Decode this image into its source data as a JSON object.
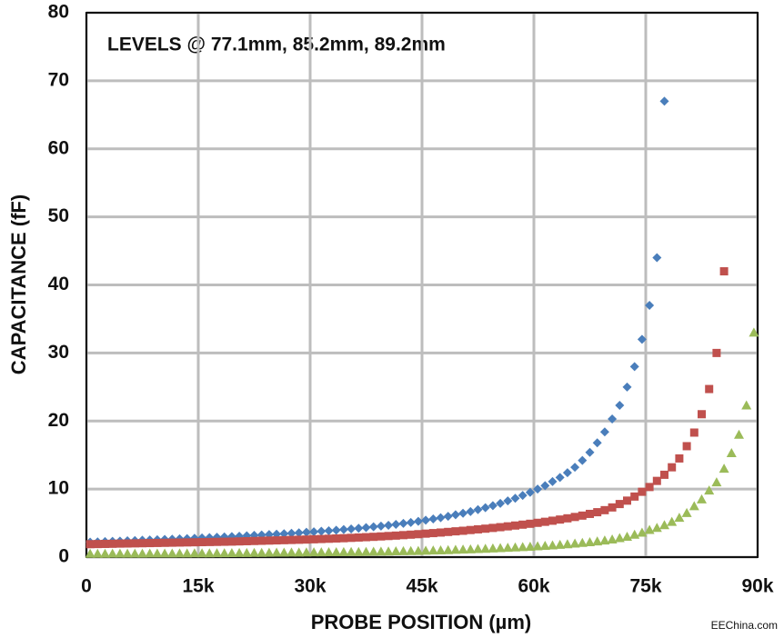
{
  "chart_data": {
    "type": "scatter",
    "annotation": "LEVELS @ 77.1mm, 85.2mm, 89.2mm",
    "x_label": "PROBE POSITION (µm)",
    "y_label": "CAPACITANCE (fF)",
    "watermark": "EEChina.com",
    "xlim": [
      0,
      90000
    ],
    "xticks": [
      0,
      {
        "value": 15000,
        "label": "15k"
      },
      {
        "value": 30000,
        "label": "30k"
      },
      {
        "value": 45000,
        "label": "45k"
      },
      {
        "value": 60000,
        "label": "60k"
      },
      {
        "value": 75000,
        "label": "75k"
      },
      {
        "value": 90000,
        "label": "90k"
      }
    ],
    "ylim": [
      0,
      80
    ],
    "yticks": [
      0,
      10,
      20,
      30,
      40,
      50,
      60,
      70,
      80
    ],
    "grid": true,
    "x": [
      500,
      1500,
      2500,
      3500,
      4500,
      5500,
      6500,
      7500,
      8500,
      9500,
      10500,
      11500,
      12500,
      13500,
      14500,
      15500,
      16500,
      17500,
      18500,
      19500,
      20500,
      21500,
      22500,
      23500,
      24500,
      25500,
      26500,
      27500,
      28500,
      29500,
      30500,
      31500,
      32500,
      33500,
      34500,
      35500,
      36500,
      37500,
      38500,
      39500,
      40500,
      41500,
      42500,
      43500,
      44500,
      45500,
      46500,
      47500,
      48500,
      49500,
      50500,
      51500,
      52500,
      53500,
      54500,
      55500,
      56500,
      57500,
      58500,
      59500,
      60500,
      61500,
      62500,
      63500,
      64500,
      65500,
      66500,
      67500,
      68500,
      69500,
      70500,
      71500,
      72500,
      73500,
      74500,
      75500,
      76500,
      77500,
      78500,
      79500,
      80500,
      81500,
      82500,
      83500,
      84500,
      85500,
      86500,
      87500,
      88500,
      89500
    ],
    "series": [
      {
        "color": "#4a7ebb",
        "marker": "diamond",
        "values": [
          2.2,
          2.24,
          2.28,
          2.32,
          2.36,
          2.4,
          2.44,
          2.48,
          2.52,
          2.56,
          2.6,
          2.64,
          2.68,
          2.72,
          2.77,
          2.82,
          2.87,
          2.92,
          2.97,
          3.02,
          3.08,
          3.14,
          3.2,
          3.26,
          3.32,
          3.38,
          3.44,
          3.51,
          3.58,
          3.65,
          3.72,
          3.8,
          3.88,
          3.96,
          4.05,
          4.14,
          4.24,
          4.34,
          4.45,
          4.56,
          4.68,
          4.81,
          4.95,
          5.1,
          5.26,
          5.43,
          5.61,
          5.8,
          6.0,
          6.22,
          6.45,
          6.7,
          6.97,
          7.26,
          7.57,
          7.9,
          8.26,
          8.65,
          9.07,
          9.52,
          10.0,
          10.5,
          11.1,
          11.7,
          12.4,
          13.2,
          14.2,
          15.4,
          16.8,
          18.4,
          20.3,
          22.3,
          25,
          28,
          32,
          37,
          44,
          67,
          null,
          null,
          null,
          null,
          null,
          null,
          null,
          null,
          null,
          null,
          null,
          null
        ]
      },
      {
        "color": "#c0504d",
        "marker": "square",
        "values": [
          1.9,
          1.92,
          1.94,
          1.96,
          1.98,
          2.0,
          2.02,
          2.04,
          2.06,
          2.08,
          2.1,
          2.12,
          2.14,
          2.16,
          2.18,
          2.2,
          2.22,
          2.24,
          2.26,
          2.28,
          2.31,
          2.34,
          2.37,
          2.4,
          2.43,
          2.46,
          2.49,
          2.52,
          2.55,
          2.58,
          2.62,
          2.66,
          2.7,
          2.74,
          2.78,
          2.83,
          2.88,
          2.93,
          2.98,
          3.04,
          3.1,
          3.16,
          3.23,
          3.3,
          3.37,
          3.45,
          3.53,
          3.61,
          3.7,
          3.79,
          3.88,
          3.98,
          4.08,
          4.18,
          4.29,
          4.4,
          4.52,
          4.64,
          4.77,
          4.9,
          5.04,
          5.19,
          5.35,
          5.52,
          5.7,
          5.9,
          6.1,
          6.35,
          6.6,
          6.9,
          7.3,
          7.8,
          8.3,
          8.9,
          9.6,
          10.3,
          11.2,
          12.1,
          13.2,
          14.5,
          16.3,
          18.3,
          21,
          24.7,
          30,
          42,
          null,
          null,
          null,
          null
        ]
      },
      {
        "color": "#9bbb59",
        "marker": "triangle",
        "values": [
          0.5,
          0.5,
          0.5,
          0.51,
          0.51,
          0.52,
          0.52,
          0.52,
          0.53,
          0.53,
          0.54,
          0.54,
          0.55,
          0.55,
          0.56,
          0.56,
          0.57,
          0.58,
          0.59,
          0.6,
          0.61,
          0.62,
          0.63,
          0.64,
          0.65,
          0.66,
          0.67,
          0.68,
          0.69,
          0.7,
          0.71,
          0.72,
          0.73,
          0.74,
          0.75,
          0.76,
          0.77,
          0.78,
          0.8,
          0.82,
          0.84,
          0.86,
          0.88,
          0.9,
          0.92,
          0.95,
          0.98,
          1.01,
          1.04,
          1.08,
          1.12,
          1.16,
          1.2,
          1.24,
          1.28,
          1.33,
          1.38,
          1.43,
          1.48,
          1.54,
          1.6,
          1.67,
          1.74,
          1.82,
          1.9,
          2.0,
          2.1,
          2.2,
          2.32,
          2.45,
          2.6,
          2.8,
          3.0,
          3.3,
          3.6,
          4.0,
          4.3,
          4.7,
          5.2,
          5.8,
          6.5,
          7.5,
          8.5,
          9.8,
          11,
          13,
          15.3,
          18,
          22.3,
          33
        ]
      }
    ]
  }
}
